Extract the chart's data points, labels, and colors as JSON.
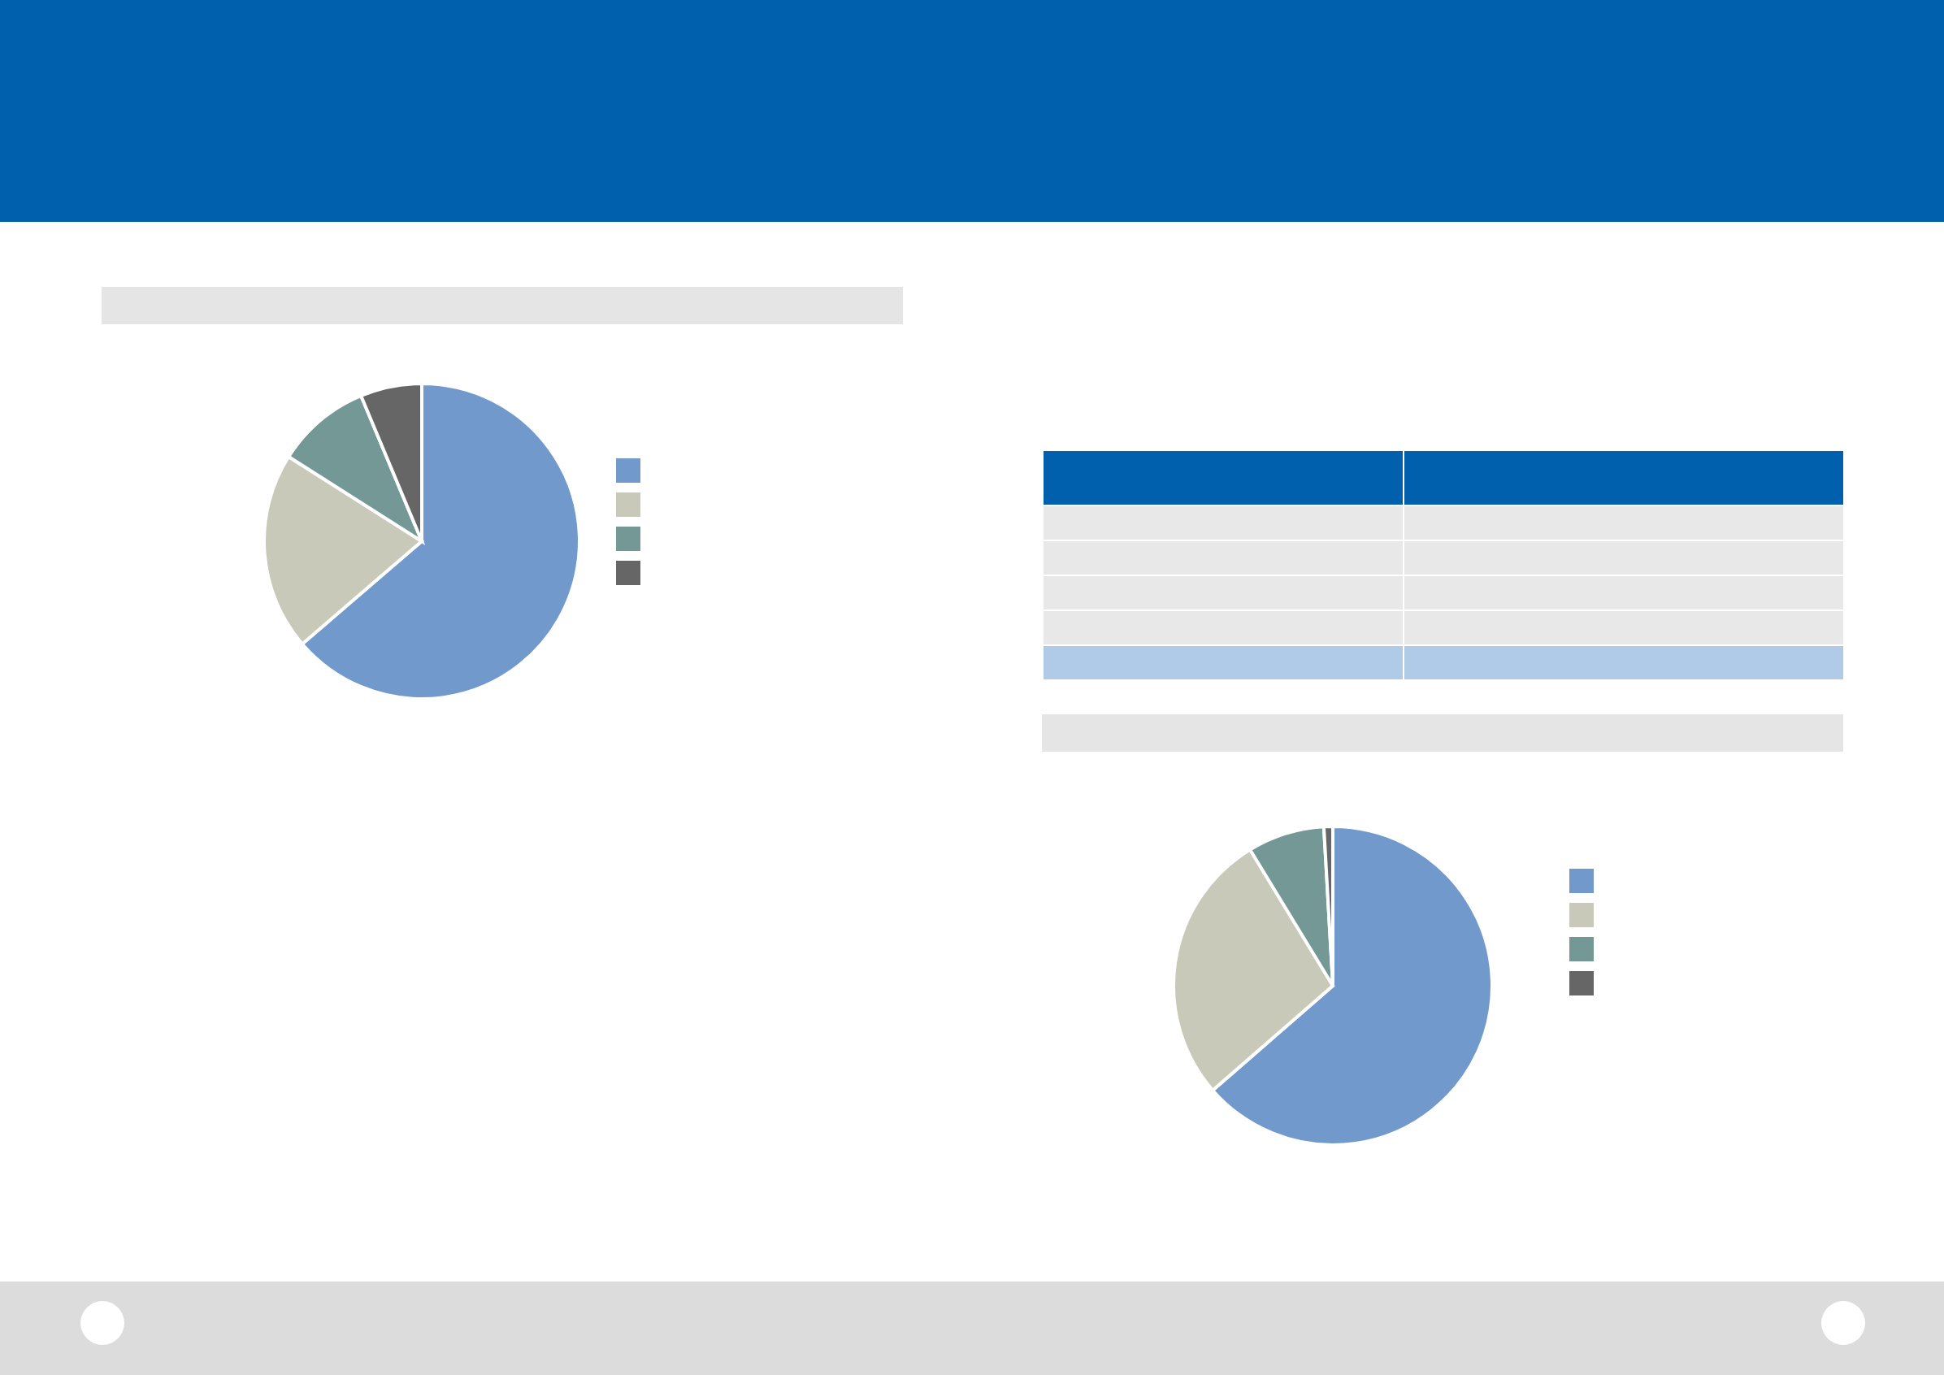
{
  "chart_data": [
    {
      "type": "pie",
      "categories": [
        null,
        null,
        null,
        null
      ],
      "values": [
        63.7,
        20.3,
        9.7,
        6.3
      ],
      "colors": [
        "#7299cb",
        "#c8c9b8",
        "#739896",
        "#666666"
      ]
    },
    {
      "type": "pie",
      "categories": [
        null,
        null,
        null,
        null
      ],
      "values": [
        63.6,
        27.7,
        7.8,
        0.9
      ],
      "colors": [
        "#7299cb",
        "#c8c9b8",
        "#739896",
        "#666666"
      ]
    }
  ]
}
